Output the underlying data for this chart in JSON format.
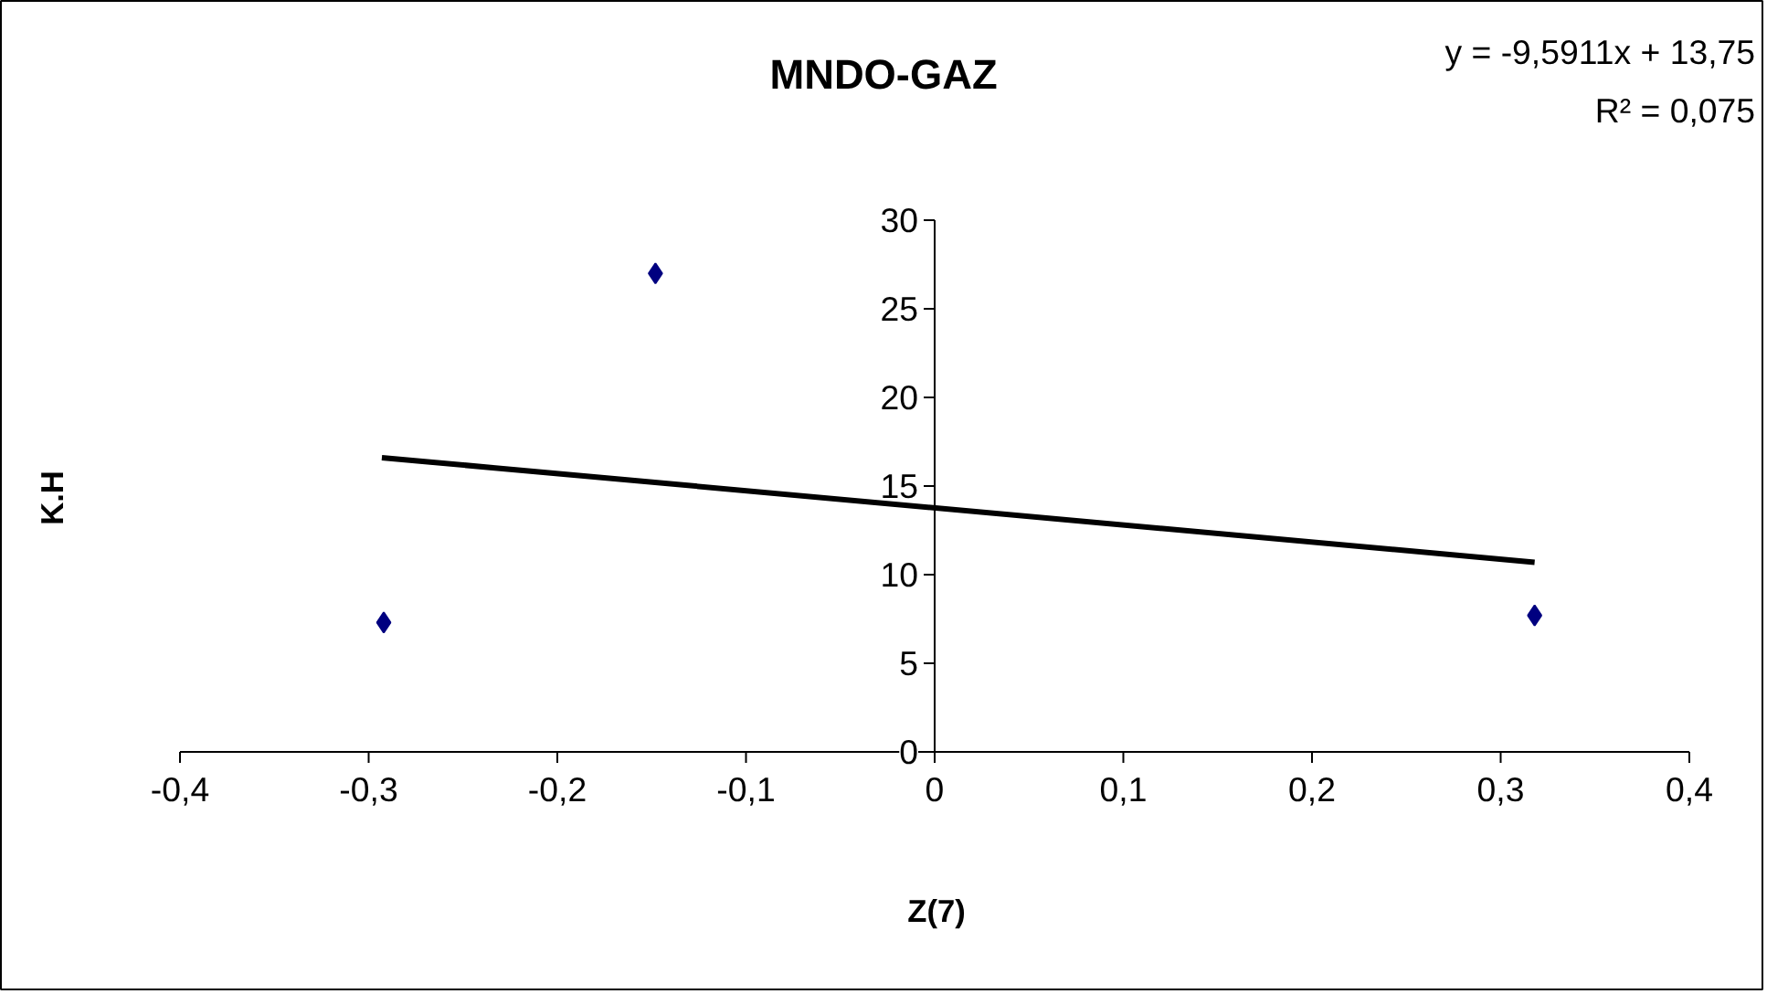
{
  "chart_data": {
    "type": "scatter",
    "title": "MNDO-GAZ",
    "xlabel": "Z(7)",
    "ylabel": "K.H",
    "annotations": [
      "y = -9,5911x + 13,75",
      "R² = 0,075"
    ],
    "series": [
      {
        "color": "#000080",
        "x": [
          -0.292,
          -0.148,
          0.318
        ],
        "values": [
          7.3,
          27.0,
          7.7
        ],
        "marker": "diamond"
      },
      {
        "type": "line",
        "color": "#000000",
        "x": [
          -0.293,
          0.318
        ],
        "values": [
          16.6,
          10.7
        ],
        "marker": "none",
        "line_style": "solid"
      }
    ],
    "xlim": [
      -0.4,
      0.4
    ],
    "ylim": [
      0,
      30
    ],
    "xticks": [
      {
        "value": -0.4,
        "label": "-0,4"
      },
      {
        "value": -0.3,
        "label": "-0,3"
      },
      {
        "value": -0.2,
        "label": "-0,2"
      },
      {
        "value": -0.1,
        "label": "-0,1"
      },
      0,
      {
        "value": 0.1,
        "label": "0,1"
      },
      {
        "value": 0.2,
        "label": "0,2"
      },
      {
        "value": 0.3,
        "label": "0,3"
      },
      {
        "value": 0.4,
        "label": "0,4"
      }
    ],
    "yticks": [
      0,
      5,
      10,
      15,
      20,
      25,
      30
    ]
  }
}
